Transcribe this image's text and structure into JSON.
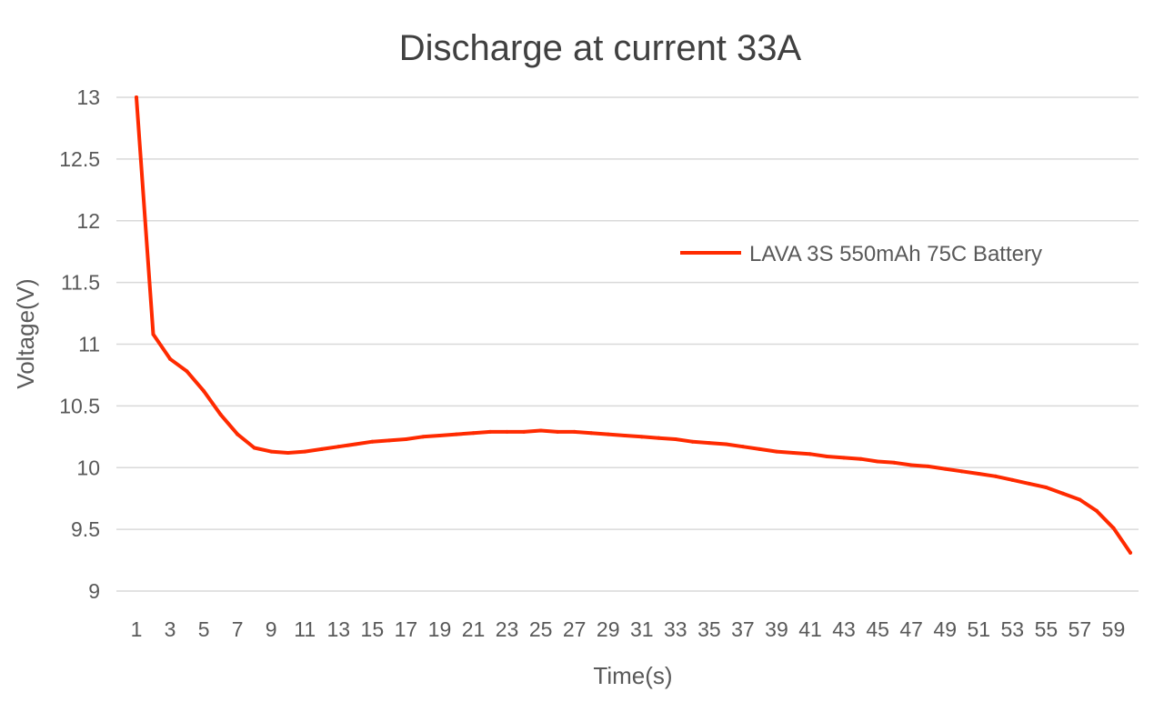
{
  "chart_data": {
    "type": "line",
    "title": "Discharge at current 33A",
    "xlabel": "Time(s)",
    "ylabel": "Voltage(V)",
    "ylim": [
      9,
      13
    ],
    "y_ticks": [
      "9",
      "9.5",
      "10",
      "10.5",
      "11",
      "11.5",
      "12",
      "12.5",
      "13"
    ],
    "x_tick_labels": [
      "1",
      "3",
      "5",
      "7",
      "9",
      "11",
      "13",
      "15",
      "17",
      "19",
      "21",
      "23",
      "25",
      "27",
      "29",
      "31",
      "33",
      "35",
      "37",
      "39",
      "41",
      "43",
      "45",
      "47",
      "49",
      "51",
      "53",
      "55",
      "57",
      "59"
    ],
    "grid": true,
    "legend_position": "right",
    "x": [
      1,
      2,
      3,
      4,
      5,
      6,
      7,
      8,
      9,
      10,
      11,
      12,
      13,
      14,
      15,
      16,
      17,
      18,
      19,
      20,
      21,
      22,
      23,
      24,
      25,
      26,
      27,
      28,
      29,
      30,
      31,
      32,
      33,
      34,
      35,
      36,
      37,
      38,
      39,
      40,
      41,
      42,
      43,
      44,
      45,
      46,
      47,
      48,
      49,
      50,
      51,
      52,
      53,
      54,
      55,
      56,
      57,
      58,
      59,
      60
    ],
    "series": [
      {
        "name": "LAVA 3S 550mAh 75C Battery",
        "color": "#ff2a00",
        "values": [
          13.0,
          11.08,
          10.88,
          10.78,
          10.62,
          10.43,
          10.27,
          10.16,
          10.13,
          10.12,
          10.13,
          10.15,
          10.17,
          10.19,
          10.21,
          10.22,
          10.23,
          10.25,
          10.26,
          10.27,
          10.28,
          10.29,
          10.29,
          10.29,
          10.3,
          10.29,
          10.29,
          10.28,
          10.27,
          10.26,
          10.25,
          10.24,
          10.23,
          10.21,
          10.2,
          10.19,
          10.17,
          10.15,
          10.13,
          10.12,
          10.11,
          10.09,
          10.08,
          10.07,
          10.05,
          10.04,
          10.02,
          10.01,
          9.99,
          9.97,
          9.95,
          9.93,
          9.9,
          9.87,
          9.84,
          9.79,
          9.74,
          9.65,
          9.51,
          9.31
        ]
      }
    ]
  }
}
